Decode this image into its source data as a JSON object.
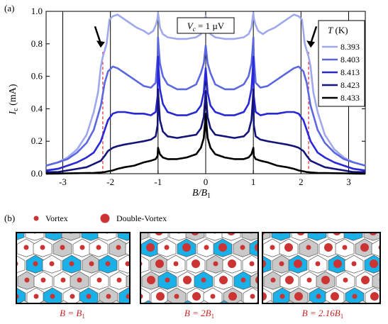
{
  "panel_a_label": "(a)",
  "panel_b_label": "(b)",
  "annotation_vc": {
    "symbol": "V",
    "sub": "c",
    "rest": " = 1 µV"
  },
  "legend_title": {
    "symbol": "T",
    "unit": " (K)"
  },
  "vortex_legend": {
    "single": "Vortex",
    "double": "Double-Vortex"
  },
  "captions": [
    {
      "pre": "B = B",
      "sub": "1",
      "post": ""
    },
    {
      "pre": "B = 2B",
      "sub": "1",
      "post": ""
    },
    {
      "pre": "B = 2.16B",
      "sub": "1",
      "post": ""
    }
  ],
  "colors": {
    "series": [
      "#9fa8ec",
      "#5b67e0",
      "#2828d8",
      "#14147a",
      "#000000"
    ],
    "vortex": "#cc3333",
    "tile_blue": "#1ab0e8",
    "tile_gray": "#c9c9c9",
    "red_dash": "#e0232f"
  },
  "chart_data": {
    "type": "line",
    "xlabel": {
      "main": "B/B",
      "sub": "1"
    },
    "ylabel": {
      "main": "I",
      "sub": "c",
      "unit": " (mA)"
    },
    "xlim": [
      -3.35,
      3.35
    ],
    "ylim": [
      0,
      1.0
    ],
    "xticks": [
      -3,
      -2,
      -1,
      0,
      1,
      2,
      3
    ],
    "xtick_labels": [
      "-3",
      "-2",
      "-1",
      "0",
      "1",
      "2",
      "3"
    ],
    "yticks": [
      0.0,
      0.2,
      0.4,
      0.6,
      0.8,
      1.0
    ],
    "ytick_labels": [
      "0.0",
      "0.2",
      "0.4",
      "0.6",
      "0.8",
      "1.0"
    ],
    "vertical_lines": [
      -3,
      -2,
      -1,
      0,
      1,
      2,
      3
    ],
    "dashed_lines": [
      -2.16,
      2.16
    ],
    "arrows_at": [
      -2.16,
      2.16
    ],
    "series": [
      {
        "name": "8.393",
        "x": [
          0,
          0.05,
          0.1,
          0.2,
          0.4,
          0.6,
          0.8,
          0.9,
          0.96,
          0.99,
          1.0,
          1.01,
          1.04,
          1.1,
          1.2,
          1.3,
          1.45,
          1.6,
          1.75,
          1.85,
          1.95,
          2.02,
          2.08,
          2.12,
          2.16,
          2.2,
          2.26,
          2.35,
          2.5,
          2.7,
          2.9,
          3.1,
          3.35
        ],
        "y": [
          0.97,
          0.9,
          0.86,
          0.84,
          0.83,
          0.83,
          0.84,
          0.86,
          0.9,
          0.97,
          0.99,
          0.96,
          0.92,
          0.88,
          0.86,
          0.88,
          0.9,
          0.93,
          0.96,
          0.98,
          0.97,
          0.95,
          0.8,
          0.76,
          0.72,
          0.66,
          0.5,
          0.38,
          0.24,
          0.15,
          0.1,
          0.07,
          0.05
        ]
      },
      {
        "name": "8.403",
        "x": [
          0,
          0.04,
          0.1,
          0.2,
          0.4,
          0.6,
          0.8,
          0.9,
          0.96,
          0.99,
          1.0,
          1.01,
          1.05,
          1.15,
          1.3,
          1.5,
          1.7,
          1.85,
          1.95,
          2.05,
          2.12,
          2.2,
          2.35,
          2.5,
          2.7,
          2.9,
          3.1,
          3.35
        ],
        "y": [
          0.79,
          0.68,
          0.62,
          0.55,
          0.52,
          0.52,
          0.55,
          0.6,
          0.68,
          0.79,
          0.84,
          0.72,
          0.56,
          0.53,
          0.54,
          0.58,
          0.62,
          0.65,
          0.66,
          0.63,
          0.56,
          0.42,
          0.27,
          0.19,
          0.13,
          0.09,
          0.07,
          0.05
        ]
      },
      {
        "name": "8.413",
        "x": [
          0,
          0.04,
          0.1,
          0.2,
          0.4,
          0.6,
          0.8,
          0.9,
          0.96,
          0.99,
          1.0,
          1.01,
          1.05,
          1.15,
          1.3,
          1.5,
          1.7,
          1.85,
          1.95,
          2.05,
          2.12,
          2.2,
          2.35,
          2.5,
          2.7,
          2.9,
          3.1,
          3.35
        ],
        "y": [
          0.65,
          0.5,
          0.42,
          0.38,
          0.36,
          0.36,
          0.38,
          0.43,
          0.52,
          0.65,
          0.72,
          0.48,
          0.38,
          0.36,
          0.37,
          0.37,
          0.38,
          0.38,
          0.37,
          0.33,
          0.27,
          0.2,
          0.13,
          0.1,
          0.07,
          0.05,
          0.03,
          0.02
        ]
      },
      {
        "name": "8.423",
        "x": [
          0,
          0.04,
          0.1,
          0.2,
          0.4,
          0.6,
          0.8,
          0.9,
          0.96,
          0.99,
          1.0,
          1.01,
          1.05,
          1.15,
          1.3,
          1.5,
          1.7,
          1.85,
          1.95,
          2.05,
          2.12,
          2.2,
          2.35,
          2.5,
          2.7,
          2.9,
          3.1,
          3.35
        ],
        "y": [
          0.51,
          0.35,
          0.28,
          0.24,
          0.23,
          0.22,
          0.23,
          0.26,
          0.33,
          0.46,
          0.52,
          0.3,
          0.23,
          0.21,
          0.2,
          0.19,
          0.18,
          0.17,
          0.16,
          0.14,
          0.11,
          0.08,
          0.06,
          0.04,
          0.03,
          0.02,
          0.01,
          0.01
        ]
      },
      {
        "name": "8.433",
        "x": [
          0,
          0.04,
          0.1,
          0.2,
          0.4,
          0.6,
          0.8,
          0.9,
          0.96,
          0.99,
          1.0,
          1.01,
          1.05,
          1.15,
          1.3,
          1.5,
          1.7,
          1.85,
          1.95,
          2.05,
          2.12,
          2.2,
          2.35,
          2.5,
          2.7,
          2.9,
          3.1,
          3.35
        ],
        "y": [
          0.37,
          0.22,
          0.16,
          0.12,
          0.1,
          0.09,
          0.09,
          0.1,
          0.12,
          0.15,
          0.16,
          0.11,
          0.09,
          0.08,
          0.07,
          0.05,
          0.04,
          0.03,
          0.02,
          0.015,
          0.01,
          0.008,
          0.005,
          0.004,
          0.003,
          0.002,
          0.001,
          0.0
        ]
      }
    ]
  }
}
